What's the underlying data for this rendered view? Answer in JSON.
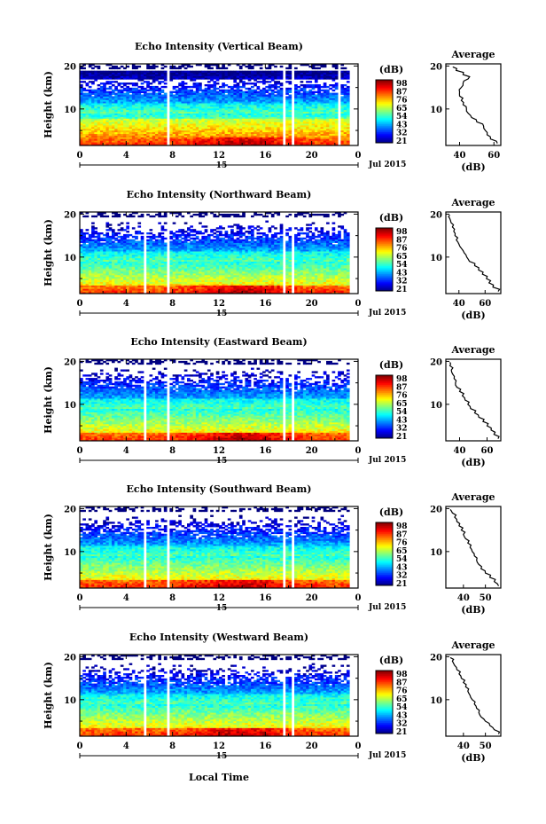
{
  "figure": {
    "date_label": "Jul 2015",
    "day_label": "15",
    "xlabel": "Local Time",
    "ylabel": "Height (km)",
    "colorbar_unit": "(dB)",
    "colorbar_ticks": [
      "98",
      "87",
      "76",
      "65",
      "54",
      "43",
      "32",
      "21"
    ],
    "average_title": "Average",
    "average_xlabel": "(dB)"
  },
  "chart_data": [
    {
      "type": "heatmap",
      "title": "Echo Intensity (Vertical Beam)",
      "xlabel": "Local Time",
      "ylabel": "Height (km)",
      "x_ticks": [
        "0",
        "4",
        "8",
        "12",
        "16",
        "20",
        "0"
      ],
      "y_ticks": [
        "20",
        "10"
      ],
      "xlim": [
        0,
        24
      ],
      "ylim": [
        1.5,
        20.5
      ],
      "zlim": [
        21,
        98
      ],
      "data_gaps_hours": [
        [
          7.5,
          7.8
        ],
        [
          17.5,
          17.8
        ],
        [
          18.2,
          18.5
        ],
        [
          22.2,
          22.5
        ]
      ],
      "average": {
        "title": "Average",
        "xlabel": "(dB)",
        "x_ticks": [
          "40",
          "60"
        ],
        "xlim": [
          32,
          64
        ],
        "ylim": [
          1.5,
          20.5
        ],
        "y_ticks": [
          "20",
          "10"
        ],
        "profile_height_km": [
          2,
          3,
          4,
          5,
          6,
          7,
          8,
          9,
          10,
          11,
          12,
          13,
          14,
          15,
          16,
          17,
          18,
          19,
          19.8
        ],
        "profile_db": [
          62,
          58,
          56,
          55,
          54,
          50,
          47,
          45,
          44,
          42,
          41,
          40,
          40,
          41,
          42,
          45,
          42,
          38,
          36
        ]
      }
    },
    {
      "type": "heatmap",
      "title": "Echo Intensity (Northward Beam)",
      "xlabel": "Local Time",
      "ylabel": "Height (km)",
      "x_ticks": [
        "0",
        "4",
        "8",
        "12",
        "16",
        "20",
        "0"
      ],
      "y_ticks": [
        "20",
        "10"
      ],
      "xlim": [
        0,
        24
      ],
      "ylim": [
        1.5,
        20.5
      ],
      "zlim": [
        21,
        98
      ],
      "data_gaps_hours": [
        [
          5.5,
          5.8
        ],
        [
          7.5,
          7.8
        ],
        [
          17.5,
          17.8
        ],
        [
          18.2,
          18.5
        ]
      ],
      "average": {
        "title": "Average",
        "xlabel": "(dB)",
        "x_ticks": [
          "40",
          "60"
        ],
        "xlim": [
          30,
          72
        ],
        "ylim": [
          1.5,
          20.5
        ],
        "y_ticks": [
          "20",
          "10"
        ],
        "profile_height_km": [
          2,
          3,
          4,
          5,
          6,
          7,
          8,
          9,
          10,
          11,
          12,
          13,
          14,
          15,
          16,
          17,
          18,
          19,
          19.8
        ],
        "profile_db": [
          70,
          66,
          63,
          61,
          58,
          55,
          52,
          48,
          46,
          44,
          42,
          40,
          38,
          37,
          36,
          35,
          34,
          33,
          33
        ]
      }
    },
    {
      "type": "heatmap",
      "title": "Echo Intensity (Eastward Beam)",
      "xlabel": "Local Time",
      "ylabel": "Height (km)",
      "x_ticks": [
        "0",
        "4",
        "8",
        "12",
        "16",
        "20",
        "0"
      ],
      "y_ticks": [
        "20",
        "10"
      ],
      "xlim": [
        0,
        24
      ],
      "ylim": [
        1.5,
        20.5
      ],
      "zlim": [
        21,
        98
      ],
      "data_gaps_hours": [
        [
          5.5,
          5.8
        ],
        [
          7.5,
          7.8
        ],
        [
          17.5,
          17.8
        ],
        [
          18.2,
          18.5
        ]
      ],
      "average": {
        "title": "Average",
        "xlabel": "(dB)",
        "x_ticks": [
          "40",
          "60"
        ],
        "xlim": [
          30,
          70
        ],
        "ylim": [
          1.5,
          20.5
        ],
        "y_ticks": [
          "20",
          "10"
        ],
        "profile_height_km": [
          2,
          3,
          4,
          5,
          6,
          7,
          8,
          9,
          10,
          11,
          12,
          13,
          14,
          15,
          16,
          17,
          18,
          19,
          19.8
        ],
        "profile_db": [
          68,
          65,
          63,
          60,
          57,
          54,
          51,
          48,
          46,
          44,
          42,
          40,
          38,
          37,
          36,
          35,
          34,
          33,
          33
        ]
      }
    },
    {
      "type": "heatmap",
      "title": "Echo Intensity (Southward Beam)",
      "xlabel": "Local Time",
      "ylabel": "Height (km)",
      "x_ticks": [
        "0",
        "4",
        "8",
        "12",
        "16",
        "20",
        "0"
      ],
      "y_ticks": [
        "20",
        "10"
      ],
      "xlim": [
        0,
        24
      ],
      "ylim": [
        1.5,
        20.5
      ],
      "zlim": [
        21,
        98
      ],
      "data_gaps_hours": [
        [
          5.5,
          5.8
        ],
        [
          7.5,
          7.8
        ],
        [
          17.5,
          17.8
        ],
        [
          18.2,
          18.5
        ]
      ],
      "average": {
        "title": "Average",
        "xlabel": "(dB)",
        "x_ticks": [
          "40",
          "50"
        ],
        "xlim": [
          32,
          57
        ],
        "ylim": [
          1.5,
          20.5
        ],
        "y_ticks": [
          "20",
          "10"
        ],
        "profile_height_km": [
          2,
          3,
          4,
          5,
          6,
          7,
          8,
          9,
          10,
          11,
          12,
          13,
          14,
          15,
          16,
          17,
          18,
          19,
          19.8
        ],
        "profile_db": [
          56,
          54,
          52,
          50,
          48,
          47,
          46,
          45,
          44,
          43,
          42,
          41,
          40,
          39,
          38,
          37,
          36,
          35,
          34
        ]
      }
    },
    {
      "type": "heatmap",
      "title": "Echo Intensity (Westward Beam)",
      "xlabel": "Local Time",
      "ylabel": "Height (km)",
      "x_ticks": [
        "0",
        "4",
        "8",
        "12",
        "16",
        "20",
        "0"
      ],
      "y_ticks": [
        "20",
        "10"
      ],
      "xlim": [
        0,
        24
      ],
      "ylim": [
        1.5,
        20.5
      ],
      "zlim": [
        21,
        98
      ],
      "data_gaps_hours": [
        [
          5.5,
          5.8
        ],
        [
          7.5,
          7.8
        ],
        [
          17.5,
          17.8
        ],
        [
          18.2,
          18.5
        ]
      ],
      "average": {
        "title": "Average",
        "xlabel": "(dB)",
        "x_ticks": [
          "40",
          "50"
        ],
        "xlim": [
          32,
          57
        ],
        "ylim": [
          1.5,
          20.5
        ],
        "y_ticks": [
          "20",
          "10"
        ],
        "profile_height_km": [
          2,
          3,
          4,
          5,
          6,
          7,
          8,
          9,
          10,
          11,
          12,
          13,
          14,
          15,
          16,
          17,
          18,
          19,
          19.8
        ],
        "profile_db": [
          56,
          54,
          52,
          50,
          48,
          47,
          46,
          45,
          44,
          43,
          42,
          41,
          40,
          39,
          38,
          37,
          36,
          35,
          34
        ]
      }
    }
  ]
}
